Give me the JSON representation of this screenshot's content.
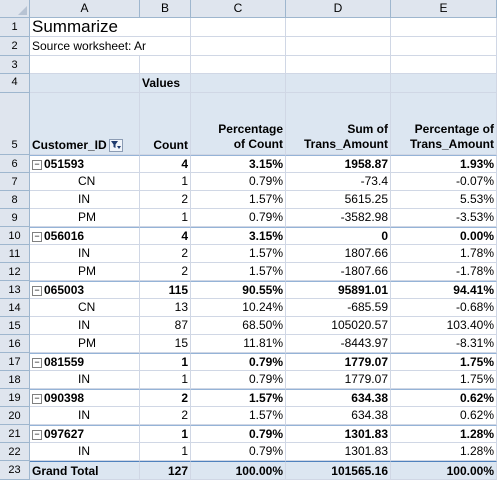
{
  "columns": [
    "A",
    "B",
    "C",
    "D",
    "E"
  ],
  "row_numbers": [
    "1",
    "2",
    "3",
    "4",
    "5",
    "6",
    "7",
    "8",
    "9",
    "10",
    "11",
    "12",
    "13",
    "14",
    "15",
    "16",
    "17",
    "18",
    "19",
    "20",
    "21",
    "22",
    "23"
  ],
  "cells": {
    "title": "Summarize",
    "source": "Source worksheet: Ar",
    "values_label": "Values",
    "hdr_customer": "Customer_ID",
    "hdr_count": "Count",
    "hdr_pct_count_1": "Percentage",
    "hdr_pct_count_2": "of Count",
    "hdr_sum_1": "Sum of",
    "hdr_sum_2": "Trans_Amount",
    "hdr_pct_amt_1": "Percentage of",
    "hdr_pct_amt_2": "Trans_Amount"
  },
  "rows": [
    {
      "label": "051593",
      "type": "group",
      "count": "4",
      "pct_count": "3.15%",
      "sum": "1958.87",
      "pct_amt": "1.93%"
    },
    {
      "label": "CN",
      "type": "item",
      "count": "1",
      "pct_count": "0.79%",
      "sum": "-73.4",
      "pct_amt": "-0.07%"
    },
    {
      "label": "IN",
      "type": "item",
      "count": "2",
      "pct_count": "1.57%",
      "sum": "5615.25",
      "pct_amt": "5.53%"
    },
    {
      "label": "PM",
      "type": "item",
      "count": "1",
      "pct_count": "0.79%",
      "sum": "-3582.98",
      "pct_amt": "-3.53%"
    },
    {
      "label": "056016",
      "type": "group",
      "count": "4",
      "pct_count": "3.15%",
      "sum": "0",
      "pct_amt": "0.00%"
    },
    {
      "label": "IN",
      "type": "item",
      "count": "2",
      "pct_count": "1.57%",
      "sum": "1807.66",
      "pct_amt": "1.78%"
    },
    {
      "label": "PM",
      "type": "item",
      "count": "2",
      "pct_count": "1.57%",
      "sum": "-1807.66",
      "pct_amt": "-1.78%"
    },
    {
      "label": "065003",
      "type": "group",
      "count": "115",
      "pct_count": "90.55%",
      "sum": "95891.01",
      "pct_amt": "94.41%"
    },
    {
      "label": "CN",
      "type": "item",
      "count": "13",
      "pct_count": "10.24%",
      "sum": "-685.59",
      "pct_amt": "-0.68%"
    },
    {
      "label": "IN",
      "type": "item",
      "count": "87",
      "pct_count": "68.50%",
      "sum": "105020.57",
      "pct_amt": "103.40%"
    },
    {
      "label": "PM",
      "type": "item",
      "count": "15",
      "pct_count": "11.81%",
      "sum": "-8443.97",
      "pct_amt": "-8.31%"
    },
    {
      "label": "081559",
      "type": "group",
      "count": "1",
      "pct_count": "0.79%",
      "sum": "1779.07",
      "pct_amt": "1.75%"
    },
    {
      "label": "IN",
      "type": "item",
      "count": "1",
      "pct_count": "0.79%",
      "sum": "1779.07",
      "pct_amt": "1.75%"
    },
    {
      "label": "090398",
      "type": "group",
      "count": "2",
      "pct_count": "1.57%",
      "sum": "634.38",
      "pct_amt": "0.62%"
    },
    {
      "label": "IN",
      "type": "item",
      "count": "2",
      "pct_count": "1.57%",
      "sum": "634.38",
      "pct_amt": "0.62%"
    },
    {
      "label": "097627",
      "type": "group",
      "count": "1",
      "pct_count": "0.79%",
      "sum": "1301.83",
      "pct_amt": "1.28%"
    },
    {
      "label": "IN",
      "type": "item",
      "count": "1",
      "pct_count": "0.79%",
      "sum": "1301.83",
      "pct_amt": "1.28%"
    },
    {
      "label": "Grand Total",
      "type": "total",
      "count": "127",
      "pct_count": "100.00%",
      "sum": "101565.16",
      "pct_amt": "100.00%"
    }
  ],
  "colors": {
    "pivot_header": "#dce6f1",
    "grid": "#d0d7e5",
    "header_bg": "#dfe5ee"
  },
  "icons": {
    "collapse": "minus-box-icon",
    "filter": "filter-dropdown-icon"
  }
}
